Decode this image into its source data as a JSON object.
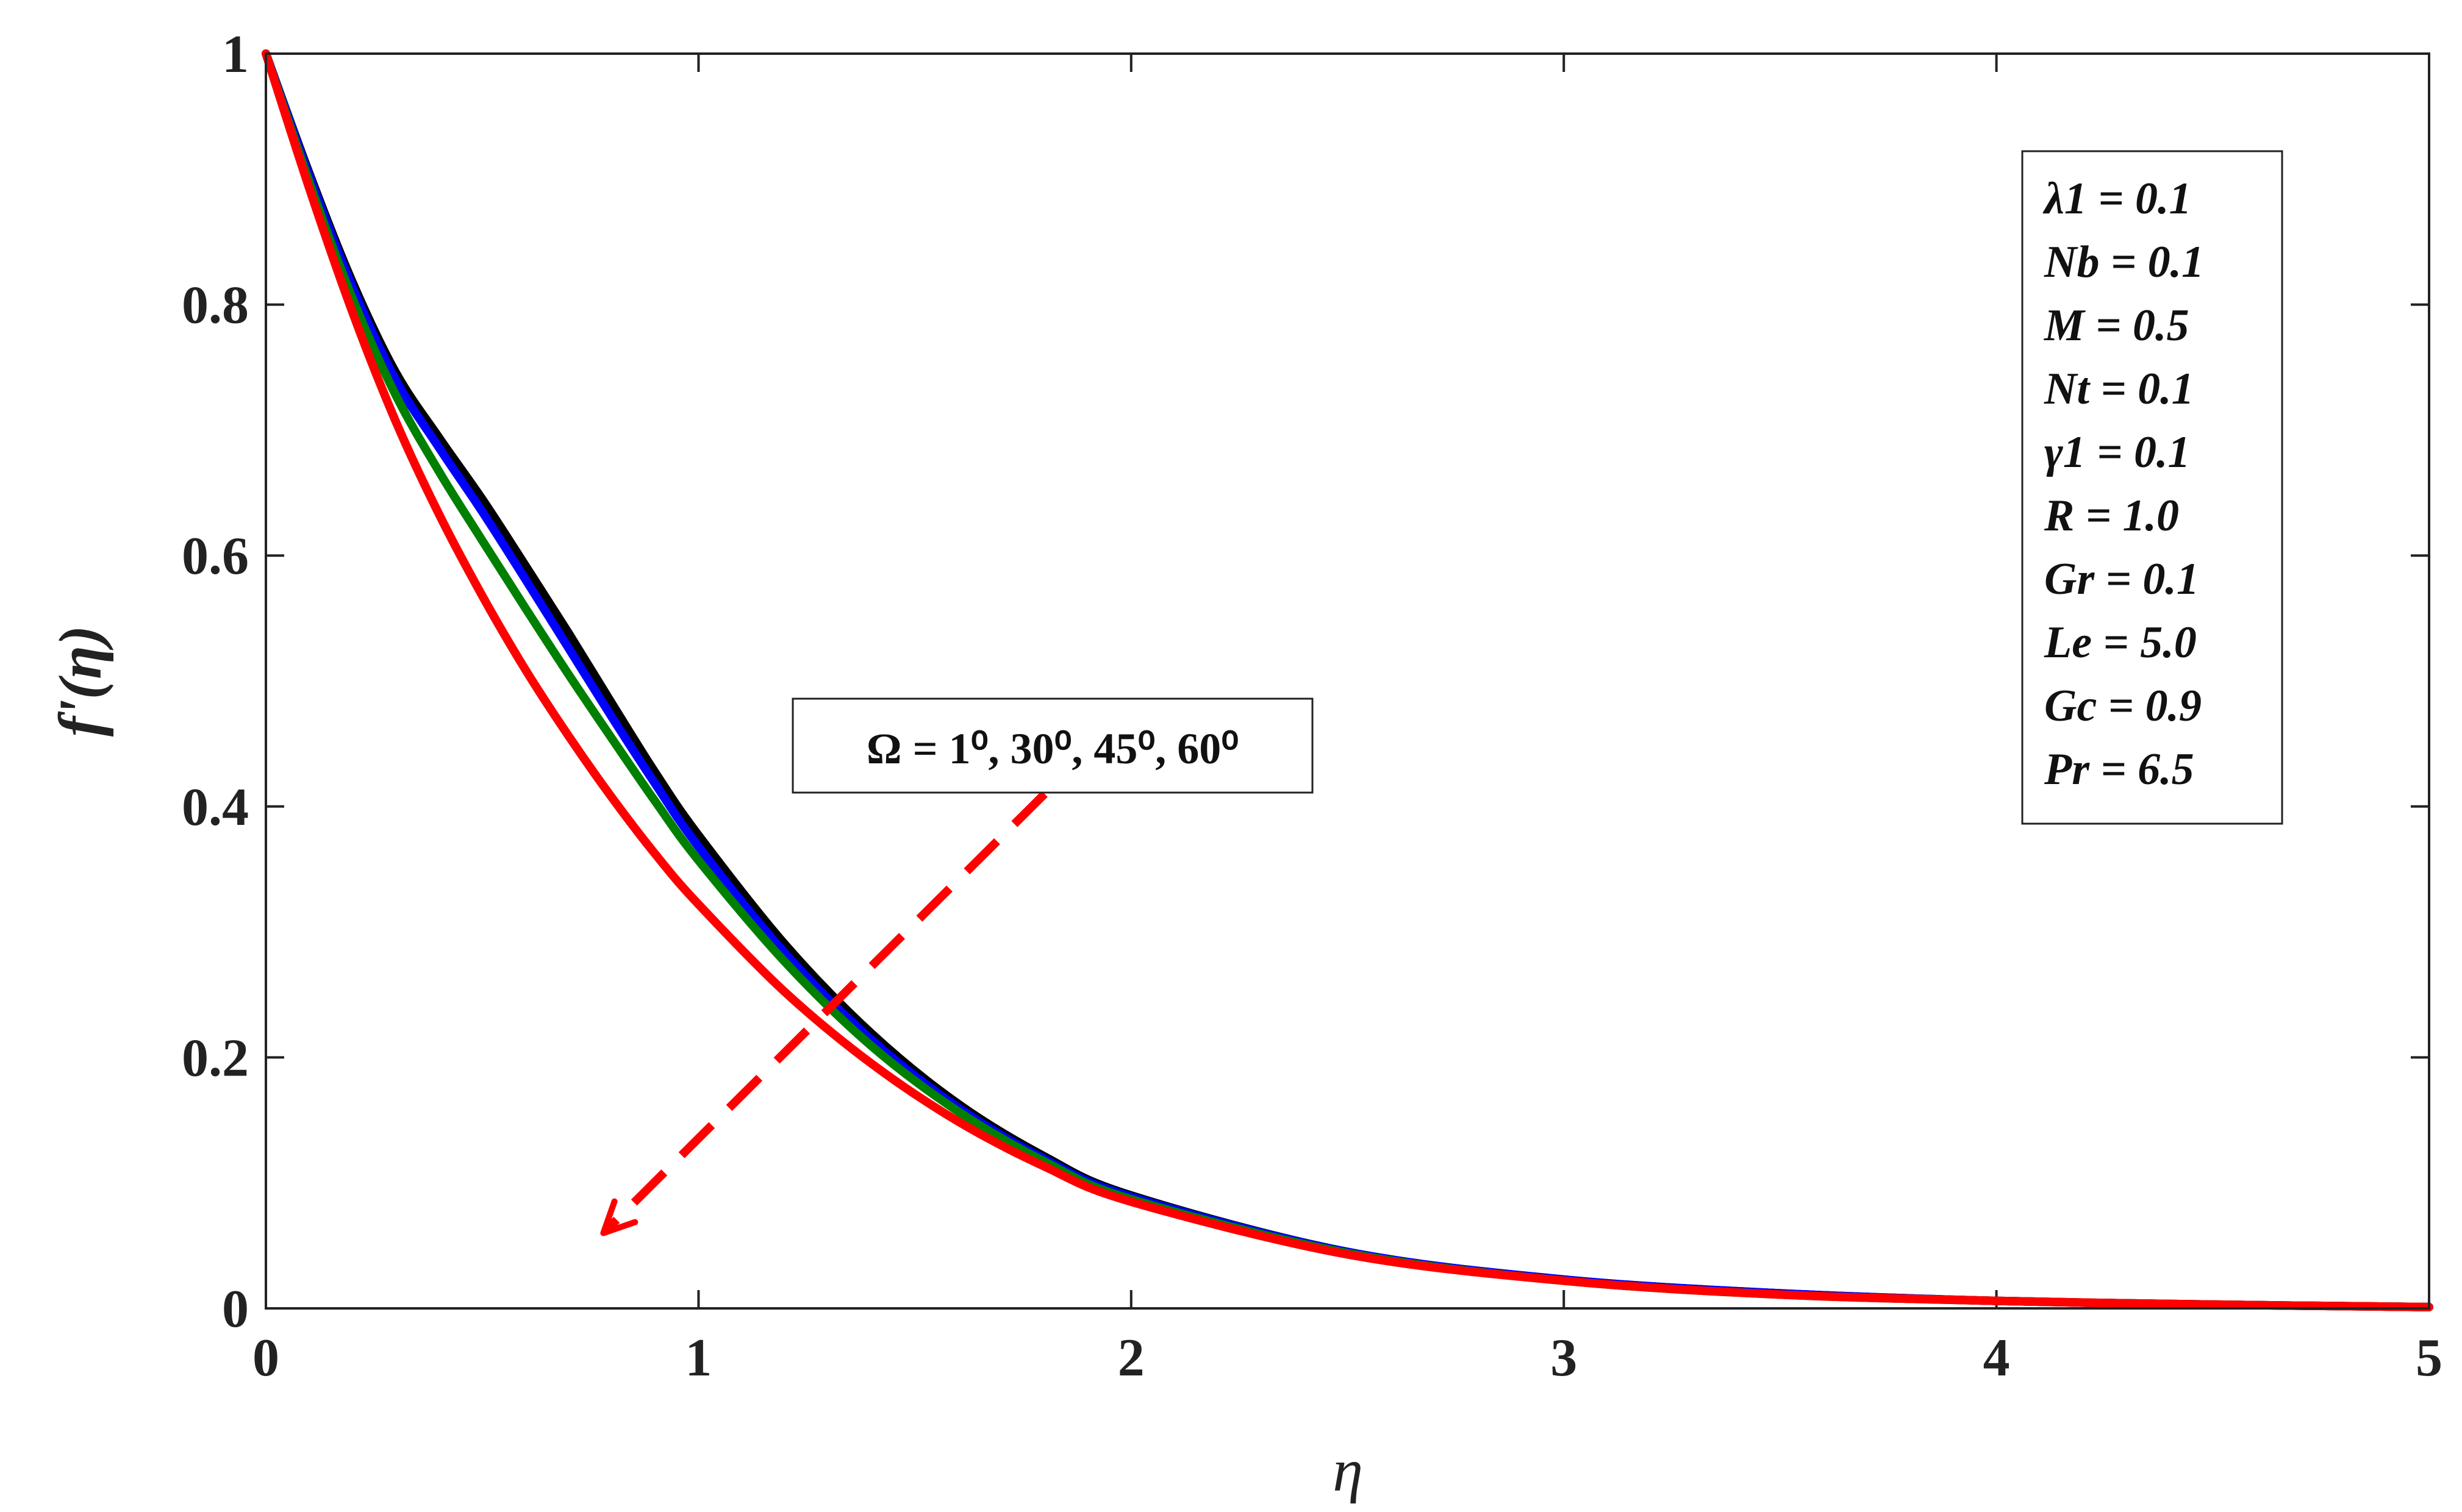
{
  "chart_data": {
    "type": "line",
    "title": "",
    "xlabel": "η",
    "ylabel": "f'(η)",
    "xlim": [
      0,
      5
    ],
    "ylim": [
      0,
      1
    ],
    "xticks": [
      "0",
      "1",
      "2",
      "3",
      "4",
      "5"
    ],
    "yticks": [
      "0",
      "0.2",
      "0.4",
      "0.6",
      "0.8",
      "1"
    ],
    "grid": false,
    "series": [
      {
        "color": "#000000",
        "x": [
          0,
          0.1,
          0.2,
          0.3,
          0.4,
          0.5,
          0.6,
          0.7,
          0.8,
          0.9,
          1.0,
          1.2,
          1.4,
          1.6,
          1.8,
          2.0,
          2.5,
          3.0,
          3.5,
          4.0,
          4.5,
          5.0
        ],
        "values": [
          1.0,
          0.905,
          0.818,
          0.746,
          0.694,
          0.645,
          0.592,
          0.538,
          0.482,
          0.427,
          0.377,
          0.29,
          0.219,
          0.163,
          0.121,
          0.09,
          0.045,
          0.023,
          0.012,
          0.006,
          0.003,
          0.001
        ]
      },
      {
        "color": "#0000ff",
        "x": [
          0,
          0.1,
          0.2,
          0.3,
          0.4,
          0.5,
          0.6,
          0.7,
          0.8,
          0.9,
          1.0,
          1.2,
          1.4,
          1.6,
          1.8,
          2.0,
          2.5,
          3.0,
          3.5,
          4.0,
          4.5,
          5.0
        ],
        "values": [
          1.0,
          0.903,
          0.814,
          0.74,
          0.686,
          0.635,
          0.581,
          0.526,
          0.471,
          0.418,
          0.368,
          0.283,
          0.214,
          0.16,
          0.119,
          0.089,
          0.045,
          0.023,
          0.012,
          0.006,
          0.003,
          0.001
        ]
      },
      {
        "color": "#008000",
        "x": [
          0,
          0.1,
          0.2,
          0.3,
          0.4,
          0.5,
          0.6,
          0.7,
          0.8,
          0.9,
          1.0,
          1.2,
          1.4,
          1.6,
          1.8,
          2.0,
          2.5,
          3.0,
          3.5,
          4.0,
          4.5,
          5.0
        ],
        "values": [
          1.0,
          0.898,
          0.805,
          0.728,
          0.667,
          0.612,
          0.558,
          0.505,
          0.454,
          0.404,
          0.357,
          0.276,
          0.209,
          0.157,
          0.117,
          0.087,
          0.044,
          0.022,
          0.011,
          0.006,
          0.003,
          0.001
        ]
      },
      {
        "color": "#ff0000",
        "x": [
          0,
          0.1,
          0.2,
          0.3,
          0.4,
          0.5,
          0.6,
          0.7,
          0.8,
          0.9,
          1.0,
          1.2,
          1.4,
          1.6,
          1.8,
          2.0,
          2.5,
          3.0,
          3.5,
          4.0,
          4.5,
          5.0
        ],
        "values": [
          1.0,
          0.893,
          0.794,
          0.707,
          0.633,
          0.568,
          0.509,
          0.456,
          0.407,
          0.362,
          0.322,
          0.252,
          0.195,
          0.149,
          0.113,
          0.085,
          0.043,
          0.022,
          0.011,
          0.006,
          0.003,
          0.001
        ]
      }
    ],
    "annotation": {
      "omega_text": "Ω = 1⁰, 30⁰, 45⁰, 60⁰",
      "arrow_from": [
        1.8,
        0.41
      ],
      "arrow_to": [
        0.78,
        0.06
      ],
      "arrow_color": "#ff0000"
    },
    "parameters": [
      "λ1 = 0.1",
      "Nb = 0.1",
      "M = 0.5",
      "Nt = 0.1",
      "γ1 = 0.1",
      "R = 1.0",
      "Gr = 0.1",
      "Le = 5.0",
      "Gc = 0.9",
      "Pr = 6.5"
    ]
  }
}
